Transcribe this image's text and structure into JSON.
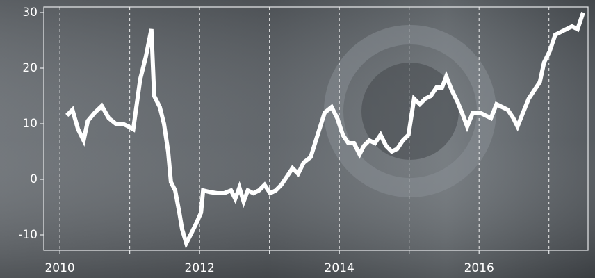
{
  "chart_data": {
    "type": "line",
    "x": [
      2010.1,
      2010.18,
      2010.26,
      2010.34,
      2010.4,
      2010.5,
      2010.6,
      2010.7,
      2010.8,
      2010.9,
      2010.98,
      2011.05,
      2011.15,
      2011.23,
      2011.31,
      2011.35,
      2011.43,
      2011.49,
      2011.55,
      2011.59,
      2011.65,
      2011.71,
      2011.75,
      2011.81,
      2011.87,
      2011.95,
      2012.02,
      2012.05,
      2012.15,
      2012.25,
      2012.35,
      2012.45,
      2012.51,
      2012.57,
      2012.63,
      2012.69,
      2012.77,
      2012.85,
      2012.93,
      2013.01,
      2013.09,
      2013.17,
      2013.25,
      2013.33,
      2013.41,
      2013.49,
      2013.59,
      2013.69,
      2013.79,
      2013.89,
      2013.97,
      2014.05,
      2014.13,
      2014.21,
      2014.29,
      2014.35,
      2014.43,
      2014.51,
      2014.59,
      2014.67,
      2014.75,
      2014.83,
      2014.91,
      2014.99,
      2015.07,
      2015.15,
      2015.23,
      2015.31,
      2015.39,
      2015.47,
      2015.53,
      2015.61,
      2015.69,
      2015.77,
      2015.83,
      2015.91,
      2016.01,
      2016.09,
      2016.17,
      2016.25,
      2016.33,
      2016.41,
      2016.49,
      2016.55,
      2016.63,
      2016.71,
      2016.79,
      2016.87,
      2016.93,
      2017.01,
      2017.09,
      2017.17,
      2017.25,
      2017.33,
      2017.41,
      2017.49
    ],
    "series": [
      {
        "color": "#ffffff",
        "values": [
          11.5,
          12.5,
          9,
          7,
          10.5,
          12,
          13.2,
          11,
          10,
          10,
          9.5,
          9,
          18,
          22,
          27,
          15,
          13,
          10,
          5,
          -0.5,
          -2,
          -6,
          -9,
          -11.5,
          -10,
          -8,
          -6,
          -2,
          -2.3,
          -2.5,
          -2.5,
          -2,
          -3.5,
          -1.5,
          -4,
          -2,
          -2.5,
          -2,
          -1,
          -2.5,
          -2,
          -1,
          0.5,
          2,
          1,
          3,
          4,
          8,
          12,
          13,
          11,
          8,
          6.5,
          6.5,
          4.5,
          6,
          7,
          6.5,
          8,
          6,
          5,
          5.5,
          7,
          8,
          14.5,
          13.5,
          14.5,
          15,
          16.5,
          16.5,
          18.5,
          16,
          14,
          11.5,
          9.5,
          12,
          12,
          11.5,
          11,
          13.5,
          13,
          12.5,
          11,
          9.5,
          12,
          14.5,
          16,
          17.5,
          21,
          23,
          26,
          26.5,
          27,
          27.5,
          27,
          30
        ]
      }
    ],
    "xlim": [
      2009.77,
      2017.56
    ],
    "xticks": [
      2010,
      2012,
      2014,
      2016
    ],
    "minor_xticks": [
      2011,
      2013,
      2015,
      2017
    ],
    "ylim": [
      -12.75,
      31
    ],
    "yticks": [
      -10,
      0,
      10,
      20,
      30
    ],
    "grid": true
  }
}
